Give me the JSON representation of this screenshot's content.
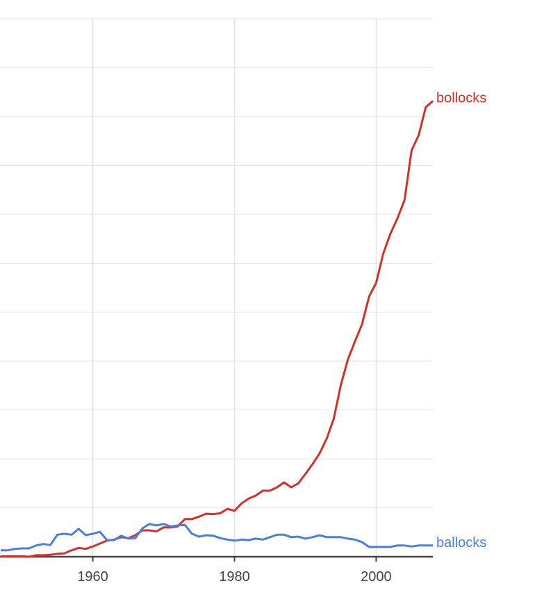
{
  "chart_data": {
    "type": "line",
    "title": "",
    "xlabel": "",
    "ylabel": "",
    "xlim": [
      1946.9,
      2008
    ],
    "ylim": [
      0,
      11
    ],
    "grid": true,
    "x_ticks": [
      1960,
      1980,
      2000
    ],
    "x_tick_labels": [
      "1960",
      "1980",
      "2000"
    ],
    "x": [
      1947,
      1948,
      1949,
      1950,
      1951,
      1952,
      1953,
      1954,
      1955,
      1956,
      1957,
      1958,
      1959,
      1960,
      1961,
      1962,
      1963,
      1964,
      1965,
      1966,
      1967,
      1968,
      1969,
      1970,
      1971,
      1972,
      1973,
      1974,
      1975,
      1976,
      1977,
      1978,
      1979,
      1980,
      1981,
      1982,
      1983,
      1984,
      1985,
      1986,
      1987,
      1988,
      1989,
      1990,
      1991,
      1992,
      1993,
      1994,
      1995,
      1996,
      1997,
      1998,
      1999,
      2000,
      2001,
      2002,
      2003,
      2004,
      2005,
      2006,
      2007,
      2008
    ],
    "series": [
      {
        "name": "bollocks",
        "color": "#d3302a",
        "values": [
          0.01,
          0.01,
          0.01,
          0.01,
          0.0,
          0.03,
          0.03,
          0.04,
          0.06,
          0.07,
          0.13,
          0.18,
          0.16,
          0.21,
          0.27,
          0.33,
          0.35,
          0.4,
          0.38,
          0.44,
          0.54,
          0.54,
          0.52,
          0.6,
          0.6,
          0.62,
          0.77,
          0.77,
          0.82,
          0.88,
          0.87,
          0.89,
          0.98,
          0.94,
          1.09,
          1.19,
          1.25,
          1.35,
          1.35,
          1.42,
          1.52,
          1.42,
          1.5,
          1.69,
          1.89,
          2.11,
          2.41,
          2.82,
          3.5,
          4.03,
          4.4,
          4.75,
          5.32,
          5.6,
          6.2,
          6.6,
          6.92,
          7.29,
          8.31,
          8.62,
          9.19,
          9.32
        ]
      },
      {
        "name": "ballocks",
        "color": "#4a7fe0",
        "values": [
          0.13,
          0.13,
          0.16,
          0.17,
          0.17,
          0.23,
          0.26,
          0.24,
          0.45,
          0.47,
          0.45,
          0.57,
          0.44,
          0.47,
          0.51,
          0.34,
          0.34,
          0.43,
          0.37,
          0.38,
          0.58,
          0.67,
          0.64,
          0.67,
          0.62,
          0.64,
          0.65,
          0.47,
          0.41,
          0.44,
          0.43,
          0.38,
          0.35,
          0.33,
          0.35,
          0.34,
          0.37,
          0.35,
          0.4,
          0.45,
          0.45,
          0.4,
          0.41,
          0.37,
          0.4,
          0.44,
          0.4,
          0.4,
          0.4,
          0.37,
          0.35,
          0.3,
          0.2,
          0.2,
          0.2,
          0.2,
          0.23,
          0.23,
          0.21,
          0.23,
          0.23,
          0.23
        ]
      }
    ]
  }
}
